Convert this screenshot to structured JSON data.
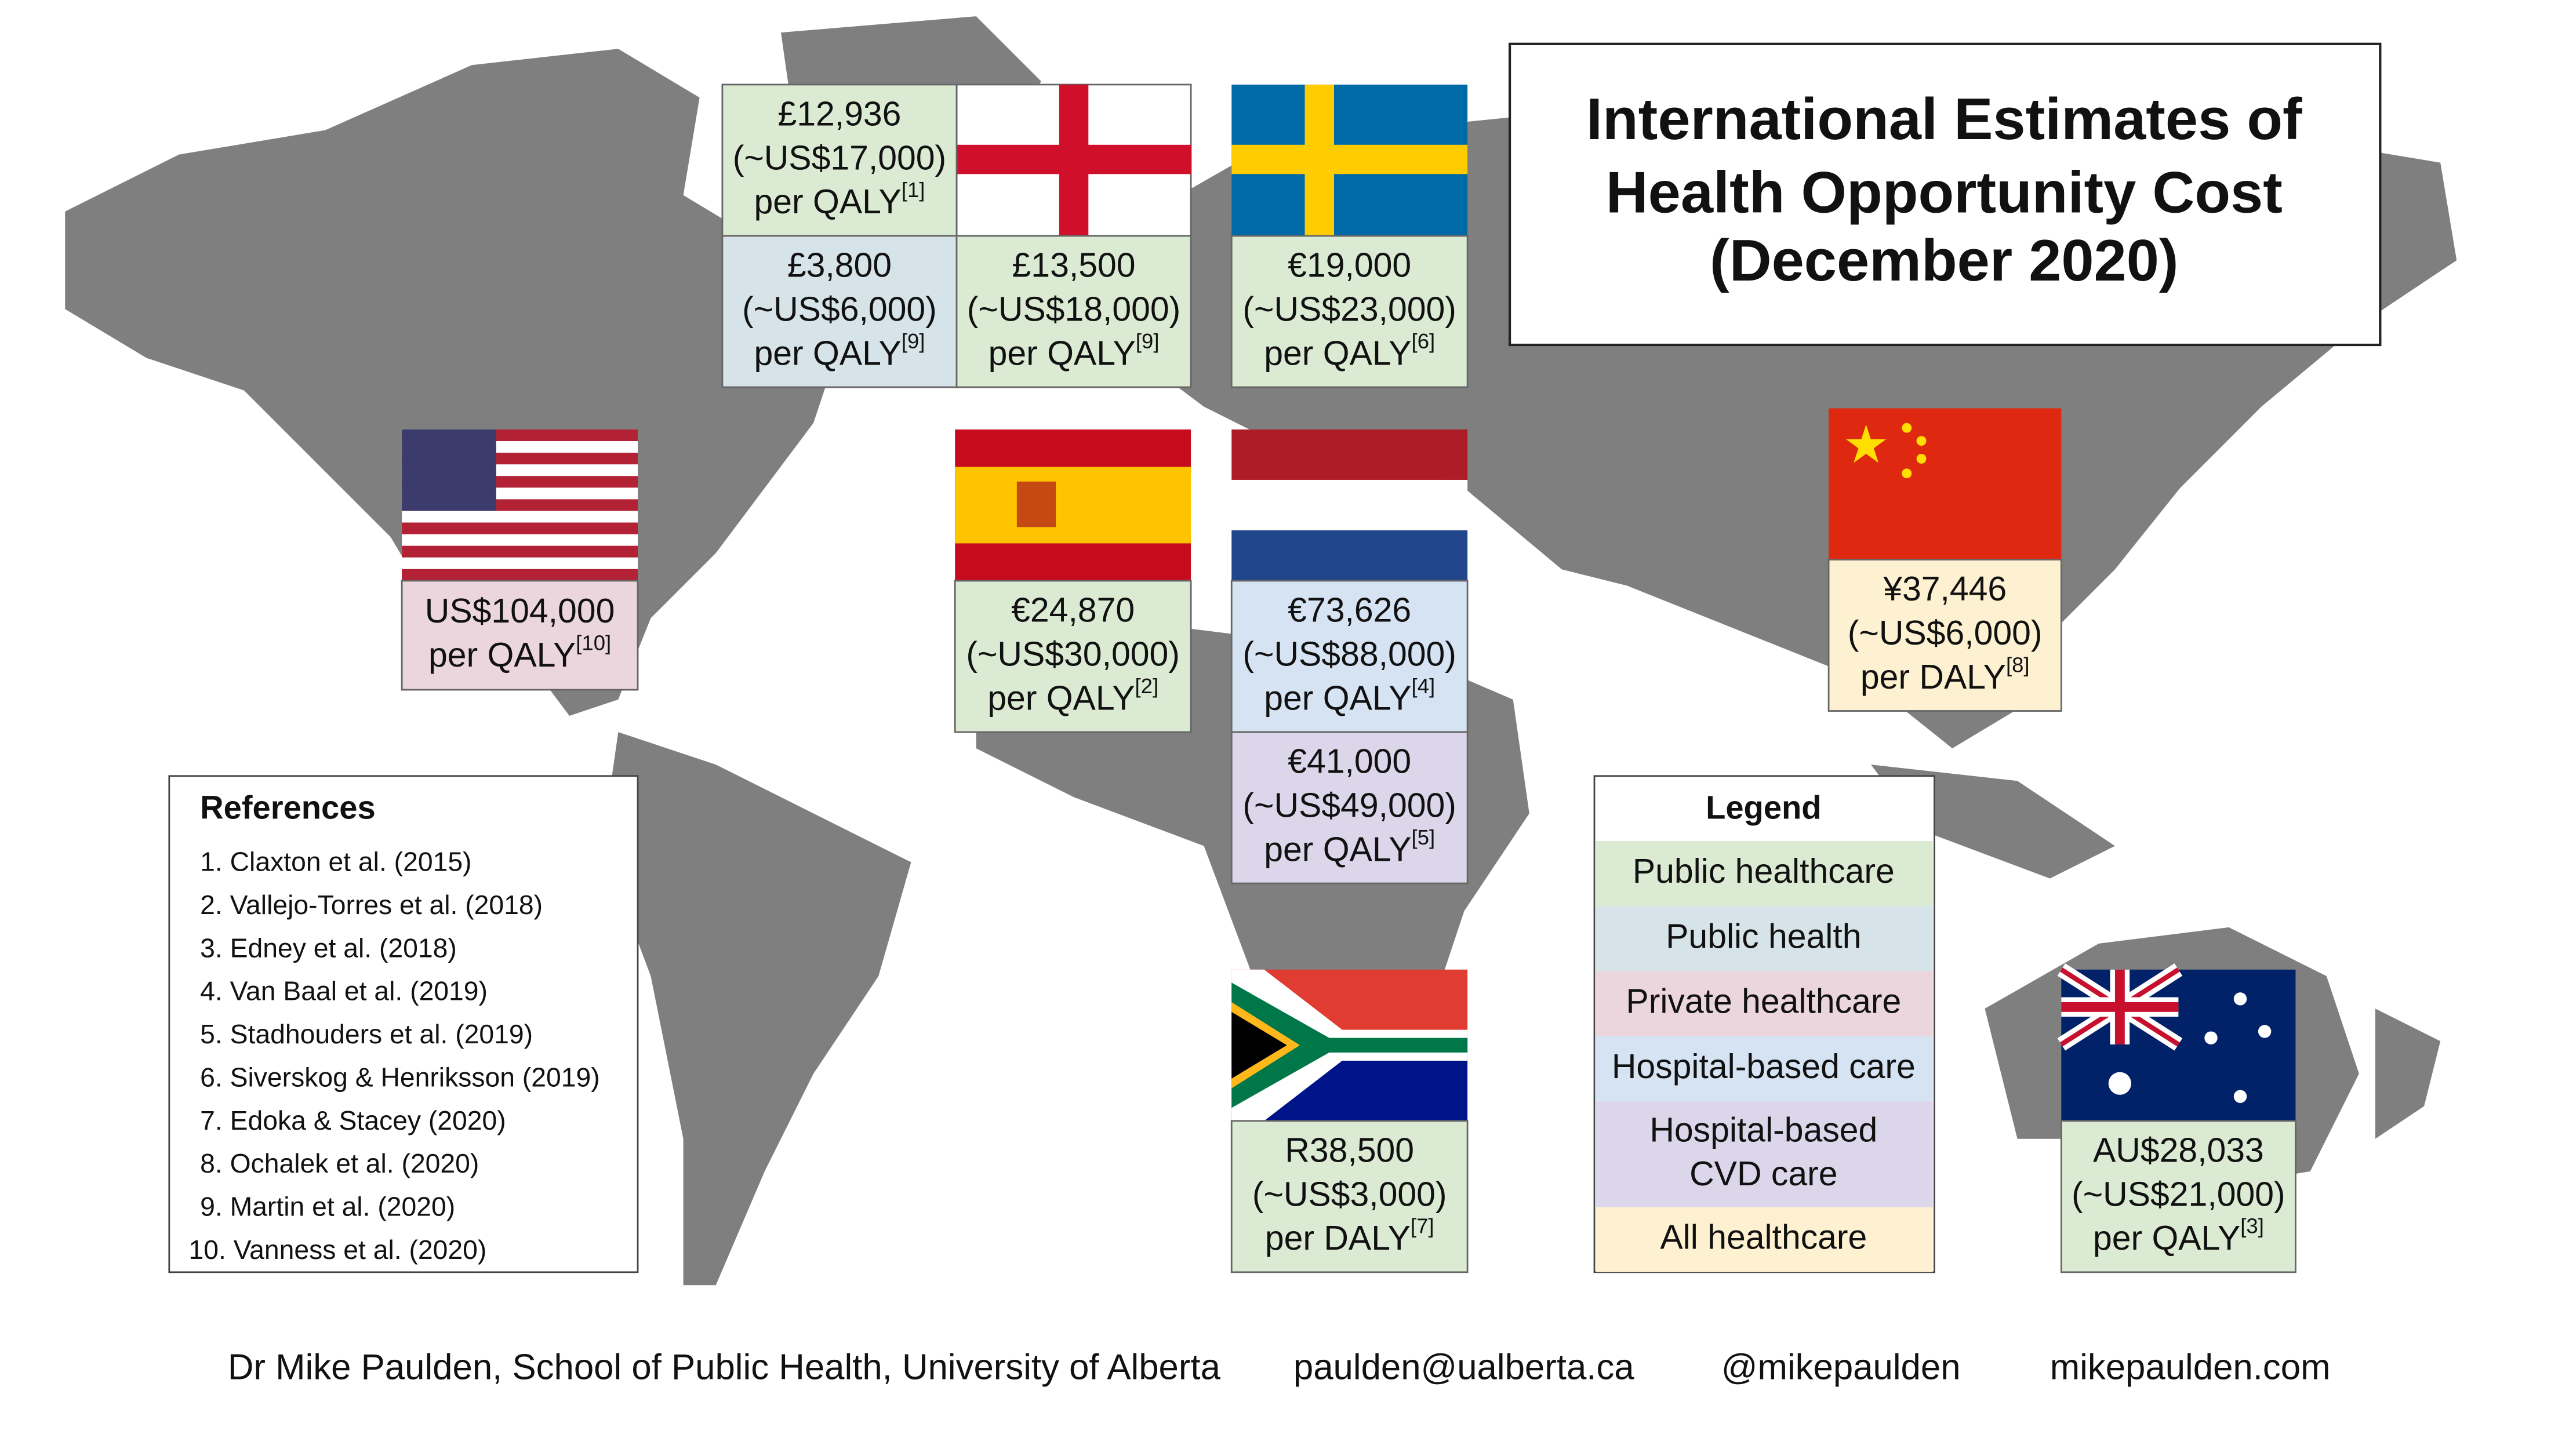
{
  "title": [
    "International Estimates of",
    "Health Opportunity Cost",
    "(December 2020)"
  ],
  "estimates": [
    {
      "lines": [
        "£12,936",
        "(~US$17,000)",
        "per QALY"
      ],
      "ref": "[1]",
      "color": "#dbead3"
    },
    {
      "lines": [
        "£3,800",
        "(~US$6,000)",
        "per QALY"
      ],
      "ref": "[9]",
      "color": "#d6e3e8"
    },
    {
      "lines": [
        "£13,500",
        "(~US$18,000)",
        "per QALY"
      ],
      "ref": "[9]",
      "color": "#dbead3"
    },
    {
      "lines": [
        "€19,000",
        "(~US$23,000)",
        "per QALY"
      ],
      "ref": "[6]",
      "color": "#dbead3"
    },
    {
      "lines": [
        "US$104,000",
        "per QALY"
      ],
      "ref": "[10]",
      "color": "#ecd6de"
    },
    {
      "lines": [
        "€24,870",
        "(~US$30,000)",
        "per QALY"
      ],
      "ref": "[2]",
      "color": "#dbead3"
    },
    {
      "lines": [
        "€73,626",
        "(~US$88,000)",
        "per QALY"
      ],
      "ref": "[4]",
      "color": "#d5e3f2"
    },
    {
      "lines": [
        "€41,000",
        "(~US$49,000)",
        "per QALY"
      ],
      "ref": "[5]",
      "color": "#dcd6ea"
    },
    {
      "lines": [
        "¥37,446",
        "(~US$6,000)",
        "per DALY"
      ],
      "ref": "[8]",
      "color": "#fdf1d1"
    },
    {
      "lines": [
        "R38,500",
        "(~US$3,000)",
        "per DALY"
      ],
      "ref": "[7]",
      "color": "#dbead3"
    },
    {
      "lines": [
        "AU$28,033",
        "(~US$21,000)",
        "per QALY"
      ],
      "ref": "[3]",
      "color": "#dbead3"
    }
  ],
  "legend": {
    "title": "Legend",
    "items": [
      {
        "lines": [
          "Public healthcare"
        ],
        "color": "#dbead3"
      },
      {
        "lines": [
          "Public health"
        ],
        "color": "#d6e3e8"
      },
      {
        "lines": [
          "Private healthcare"
        ],
        "color": "#ecd6de"
      },
      {
        "lines": [
          "Hospital-based care"
        ],
        "color": "#d5e3f2"
      },
      {
        "lines": [
          "Hospital-based",
          "CVD care"
        ],
        "color": "#dcd6ea"
      },
      {
        "lines": [
          "All healthcare"
        ],
        "color": "#fdf1d1"
      }
    ]
  },
  "references": {
    "title": "References",
    "items": [
      "1. Claxton et al. (2015)",
      "2. Vallejo-Torres et al. (2018)",
      "3. Edney et al. (2018)",
      "4. Van Baal et al. (2019)",
      "5. Stadhouders et al. (2019)",
      "6. Siverskog & Henriksson (2019)",
      "7. Edoka & Stacey (2020)",
      "8. Ochalek et al. (2020)",
      "9. Martin et al. (2020)",
      "10. Vanness et al. (2020)"
    ]
  },
  "footer": [
    "Dr Mike Paulden, School of Public Health, University of Alberta",
    "paulden@ualberta.ca",
    "@mikepaulden",
    "mikepaulden.com"
  ]
}
